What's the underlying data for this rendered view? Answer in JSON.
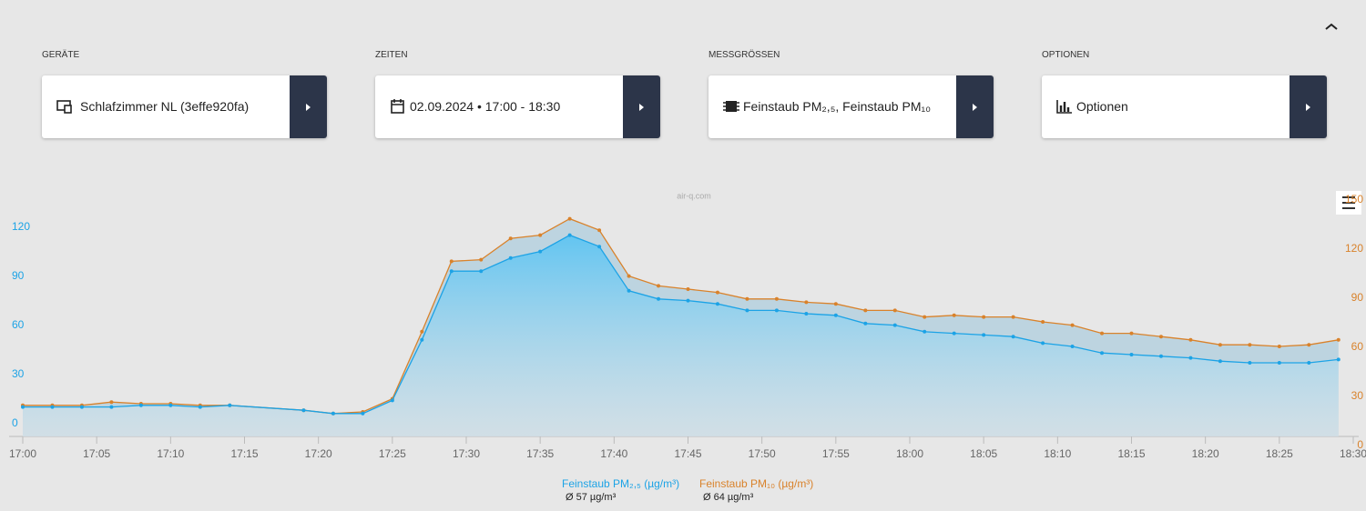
{
  "header": {
    "controls": [
      {
        "label": "GERÄTE",
        "value": "Schlafzimmer NL (3effe920fa)"
      },
      {
        "label": "ZEITEN",
        "value": "02.09.2024 • 17:00 - 18:30"
      },
      {
        "label": "MESSGRÖSSEN",
        "value": "Feinstaub PM₂,₅, Feinstaub PM₁₀"
      },
      {
        "label": "OPTIONEN",
        "value": "Optionen"
      }
    ]
  },
  "chart_data": {
    "type": "line",
    "watermark": "air-q.com",
    "area": true,
    "x": [
      "17:00",
      "17:02",
      "17:04",
      "17:06",
      "17:08",
      "17:10",
      "17:12",
      "17:14",
      "17:19",
      "17:21",
      "17:23",
      "17:25",
      "17:27",
      "17:29",
      "17:31",
      "17:33",
      "17:35",
      "17:37",
      "17:39",
      "17:41",
      "17:43",
      "17:45",
      "17:47",
      "17:49",
      "17:51",
      "17:53",
      "17:55",
      "17:57",
      "17:59",
      "18:01",
      "18:03",
      "18:05",
      "18:07",
      "18:09",
      "18:11",
      "18:13",
      "18:15",
      "18:17",
      "18:19",
      "18:21",
      "18:23",
      "18:25",
      "18:27",
      "18:29"
    ],
    "xlim": [
      "17:00",
      "18:30"
    ],
    "xticks": [
      "17:00",
      "17:05",
      "17:10",
      "17:15",
      "17:20",
      "17:25",
      "17:30",
      "17:35",
      "17:40",
      "17:45",
      "17:50",
      "17:55",
      "18:00",
      "18:05",
      "18:10",
      "18:15",
      "18:20",
      "18:25",
      "18:30"
    ],
    "ylim": [
      0,
      150
    ],
    "yticks": [
      0,
      30,
      60,
      90,
      120
    ],
    "y2lim": [
      0,
      150
    ],
    "y2ticks": [
      0,
      30,
      60,
      90,
      120,
      150
    ],
    "series": [
      {
        "name": "Feinstaub PM₂,₅ (µg/m³)",
        "color": "#1ca3e6",
        "average_label": "Ø 57 µg/m³",
        "values": [
          18,
          18,
          18,
          18,
          19,
          19,
          18,
          19,
          16,
          14,
          14,
          22,
          59,
          101,
          101,
          109,
          113,
          123,
          116,
          89,
          84,
          83,
          81,
          77,
          77,
          75,
          74,
          69,
          68,
          64,
          63,
          62,
          61,
          57,
          55,
          51,
          50,
          49,
          48,
          46,
          45,
          45,
          45,
          47
        ]
      },
      {
        "name": "Feinstaub PM₁₀ (µg/m³)",
        "color": "#d9822b",
        "axis": "y2",
        "average_label": "Ø 64 µg/m³",
        "values": [
          19,
          19,
          19,
          21,
          20,
          20,
          19,
          19,
          16,
          14,
          15,
          23,
          64,
          107,
          108,
          121,
          123,
          133,
          126,
          98,
          92,
          90,
          88,
          84,
          84,
          82,
          81,
          77,
          77,
          73,
          74,
          73,
          73,
          70,
          68,
          63,
          63,
          61,
          59,
          56,
          56,
          55,
          56,
          59
        ]
      }
    ]
  }
}
